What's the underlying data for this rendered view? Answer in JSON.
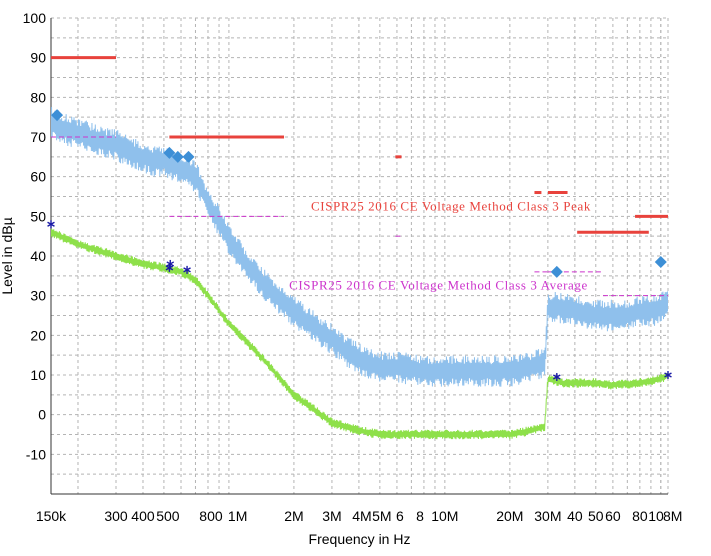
{
  "chart_data": {
    "type": "line",
    "xlabel": "Frequency in Hz",
    "ylabel": "Level in dBµ",
    "xscale": "log",
    "xlim": [
      150000,
      108000000
    ],
    "ylim": [
      -20,
      100
    ],
    "grid": true,
    "y_ticks": [
      {
        "value": 100,
        "label": "100"
      },
      {
        "value": 90,
        "label": "90"
      },
      {
        "value": 80,
        "label": "80"
      },
      {
        "value": 70,
        "label": "70"
      },
      {
        "value": 60,
        "label": "60"
      },
      {
        "value": 50,
        "label": "50"
      },
      {
        "value": 40,
        "label": "40"
      },
      {
        "value": 30,
        "label": "30"
      },
      {
        "value": 20,
        "label": "20"
      },
      {
        "value": 10,
        "label": "10"
      },
      {
        "value": 0,
        "label": "0"
      },
      {
        "value": -10,
        "label": "-10"
      }
    ],
    "x_ticks": [
      {
        "value": 150000,
        "label": "150k"
      },
      {
        "value": 300000,
        "label": "300"
      },
      {
        "value": 400000,
        "label": "400"
      },
      {
        "value": 500000,
        "label": "500"
      },
      {
        "value": 800000,
        "label": "800"
      },
      {
        "value": 1000000,
        "label": "1M"
      },
      {
        "value": 2000000,
        "label": "2M"
      },
      {
        "value": 3000000,
        "label": "3M"
      },
      {
        "value": 4000000,
        "label": "4M"
      },
      {
        "value": 5000000,
        "label": "5M"
      },
      {
        "value": 6000000,
        "label": "6"
      },
      {
        "value": 8000000,
        "label": "8"
      },
      {
        "value": 10000000,
        "label": "10M"
      },
      {
        "value": 20000000,
        "label": "20M"
      },
      {
        "value": 30000000,
        "label": "30M"
      },
      {
        "value": 40000000,
        "label": "40"
      },
      {
        "value": 50000000,
        "label": "50"
      },
      {
        "value": 60000000,
        "label": "60"
      },
      {
        "value": 80000000,
        "label": "80"
      },
      {
        "value": 100000000,
        "label": "10"
      },
      {
        "value": 108000000,
        "label": "8M"
      }
    ],
    "annotations": [
      {
        "text": "CISPR25 2016 CE Voltage Method Class 3 Peak",
        "color": "#e8423c",
        "x": 2400000,
        "y": 51.5
      },
      {
        "text": "CISPR25 2016 CE Voltage Method Class 3 Average",
        "color": "#cc33cc",
        "x": 1900000,
        "y": 31.5
      }
    ],
    "limit_lines": {
      "peak": {
        "color": "#e8423c",
        "segments": [
          {
            "x": [
              150000,
              300000
            ],
            "y": 90
          },
          {
            "x": [
              530000,
              1800000
            ],
            "y": 70
          },
          {
            "x": [
              5900000,
              6300000
            ],
            "y": 65
          },
          {
            "x": [
              26000000,
              28000000
            ],
            "y": 56
          },
          {
            "x": [
              30000000,
              37000000
            ],
            "y": 56
          },
          {
            "x": [
              41000000,
              88000000
            ],
            "y": 46
          },
          {
            "x": [
              76000000,
              108000000
            ],
            "y": 50
          }
        ]
      },
      "average": {
        "color": "#cc33cc",
        "segments": [
          {
            "x": [
              150000,
              300000
            ],
            "y": 70
          },
          {
            "x": [
              530000,
              1800000
            ],
            "y": 50
          },
          {
            "x": [
              5900000,
              6300000
            ],
            "y": 45
          },
          {
            "x": [
              26000000,
              30000000
            ],
            "y": 36
          },
          {
            "x": [
              30000000,
              54000000
            ],
            "y": 36
          },
          {
            "x": [
              54000000,
              108000000
            ],
            "y": 30
          }
        ]
      }
    },
    "series": [
      {
        "kind": "peak-scan",
        "color": "#8fc0ec",
        "x": [
          150000,
          170000,
          200000,
          250000,
          300000,
          350000,
          400000,
          450000,
          500000,
          550000,
          600000,
          650000,
          700000,
          750000,
          800000,
          900000,
          1000000,
          1200000,
          1500000,
          2000000,
          2500000,
          3000000,
          3500000,
          4000000,
          5000000,
          6000000,
          8000000,
          10000000,
          15000000,
          20000000,
          25000000,
          29000000,
          30000000,
          35000000,
          40000000,
          50000000,
          60000000,
          70000000,
          80000000,
          90000000,
          100000000,
          108000000
        ],
        "y": [
          74,
          72,
          71,
          69,
          68,
          66,
          65,
          64,
          64,
          63,
          62,
          61,
          60,
          57,
          53,
          49,
          44,
          38,
          32,
          26,
          22,
          19,
          16,
          14,
          12,
          12,
          11,
          11,
          11,
          11,
          12,
          13,
          27,
          27,
          26,
          25,
          25,
          25,
          26,
          26,
          27,
          28
        ],
        "spread": 4
      },
      {
        "kind": "average-scan",
        "color": "#8ee04a",
        "x": [
          150000,
          200000,
          300000,
          400000,
          500000,
          600000,
          700000,
          800000,
          1000000,
          1500000,
          2000000,
          3000000,
          4000000,
          5000000,
          7000000,
          10000000,
          15000000,
          20000000,
          25000000,
          29000000,
          30000000,
          35000000,
          40000000,
          50000000,
          60000000,
          80000000,
          100000000,
          108000000
        ],
        "y": [
          46,
          43,
          40,
          38,
          37,
          36,
          34,
          30,
          23,
          13,
          5,
          -2,
          -4,
          -5,
          -5,
          -5,
          -5,
          -5,
          -4,
          -3,
          9,
          8,
          8,
          8,
          7.5,
          8,
          9,
          10
        ],
        "spread": 1.2
      }
    ],
    "peak_markers": {
      "shape": "diamond",
      "color": "#3d8fd6",
      "points": [
        {
          "x": 160000,
          "y": 75.5
        },
        {
          "x": 530000,
          "y": 66
        },
        {
          "x": 580000,
          "y": 65
        },
        {
          "x": 650000,
          "y": 65
        },
        {
          "x": 33000000,
          "y": 36
        },
        {
          "x": 100000000,
          "y": 38.5
        }
      ]
    },
    "average_markers": {
      "shape": "asterisk",
      "color": "#1a1aa6",
      "points": [
        {
          "x": 150000,
          "y": 48
        },
        {
          "x": 530000,
          "y": 37
        },
        {
          "x": 535000,
          "y": 38
        },
        {
          "x": 640000,
          "y": 36.5
        },
        {
          "x": 33000000,
          "y": 9.5
        },
        {
          "x": 108000000,
          "y": 10
        }
      ]
    },
    "colors": {
      "grid": "#b4b4b4",
      "axis": "#333333"
    }
  }
}
